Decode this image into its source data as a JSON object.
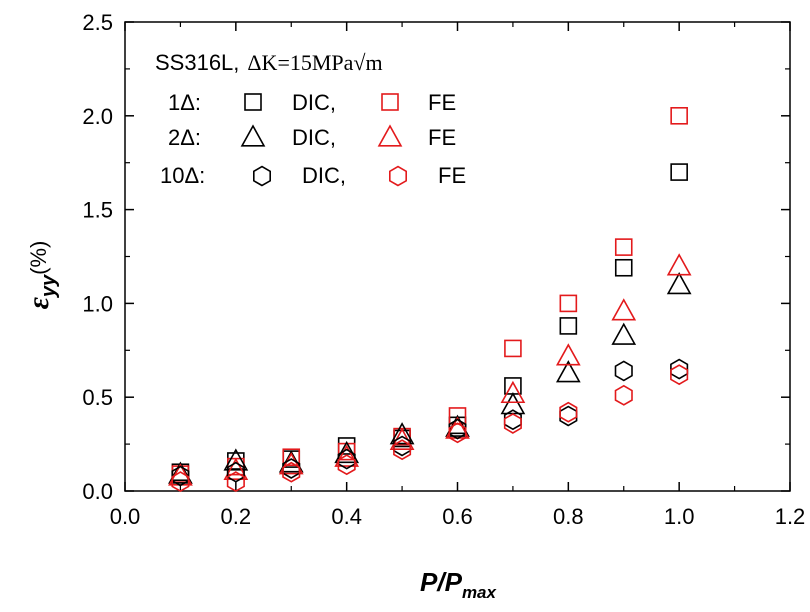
{
  "chart_data": {
    "type": "scatter",
    "title": "",
    "xlabel": "P/P",
    "xlabel_sub": "max",
    "ylabel_symbol": "ε",
    "ylabel_sub": "yy",
    "ylabel_unit": "(%)",
    "xlim": [
      0.0,
      1.2
    ],
    "ylim": [
      0.0,
      2.5
    ],
    "xticks": [
      "0.0",
      "0.2",
      "0.4",
      "0.6",
      "0.8",
      "1.0",
      "1.2"
    ],
    "yticks": [
      "0.0",
      "0.5",
      "1.0",
      "1.5",
      "2.0",
      "2.5"
    ],
    "grid": false,
    "legend_position": "top-left",
    "legend": {
      "title_material": "SS316L,",
      "title_dk": "ΔK=15MPa√m",
      "rows": [
        {
          "label": "1Δ:",
          "dic": "DIC,",
          "fe": "FE",
          "marker": "square"
        },
        {
          "label": "2Δ:",
          "dic": "DIC,",
          "fe": "FE",
          "marker": "triangle"
        },
        {
          "label": "10Δ:",
          "dic": "DIC,",
          "fe": "FE",
          "marker": "hexagon"
        }
      ]
    },
    "colors": {
      "DIC": "#000000",
      "FE": "#e31a1c"
    },
    "series": [
      {
        "name": "1Δ DIC",
        "marker": "square",
        "color": "#000000",
        "x": [
          0.1,
          0.2,
          0.3,
          0.4,
          0.5,
          0.6,
          0.7,
          0.8,
          0.9,
          1.0
        ],
        "y": [
          0.1,
          0.16,
          0.17,
          0.24,
          0.28,
          0.35,
          0.56,
          0.88,
          1.19,
          1.7
        ]
      },
      {
        "name": "1Δ FE",
        "marker": "square",
        "color": "#e31a1c",
        "x": [
          0.1,
          0.2,
          0.3,
          0.4,
          0.5,
          0.6,
          0.7,
          0.8,
          0.9,
          1.0
        ],
        "y": [
          0.09,
          0.13,
          0.18,
          0.21,
          0.29,
          0.4,
          0.76,
          1.0,
          1.3,
          2.0
        ]
      },
      {
        "name": "2Δ DIC",
        "marker": "triangle",
        "color": "#000000",
        "x": [
          0.1,
          0.2,
          0.3,
          0.4,
          0.5,
          0.6,
          0.7,
          0.8,
          0.9,
          1.0
        ],
        "y": [
          0.09,
          0.16,
          0.15,
          0.2,
          0.3,
          0.34,
          0.46,
          0.63,
          0.83,
          1.1
        ]
      },
      {
        "name": "2Δ FE",
        "marker": "triangle",
        "color": "#e31a1c",
        "x": [
          0.1,
          0.2,
          0.3,
          0.4,
          0.5,
          0.6,
          0.7,
          0.8,
          0.9,
          1.0
        ],
        "y": [
          0.08,
          0.11,
          0.14,
          0.18,
          0.27,
          0.33,
          0.52,
          0.72,
          0.96,
          1.2
        ]
      },
      {
        "name": "10Δ DIC",
        "marker": "hexagon",
        "color": "#000000",
        "x": [
          0.1,
          0.2,
          0.3,
          0.4,
          0.5,
          0.6,
          0.7,
          0.8,
          0.9,
          1.0
        ],
        "y": [
          0.08,
          0.1,
          0.12,
          0.17,
          0.24,
          0.33,
          0.38,
          0.4,
          0.64,
          0.65
        ]
      },
      {
        "name": "10Δ FE",
        "marker": "hexagon",
        "color": "#e31a1c",
        "x": [
          0.1,
          0.2,
          0.3,
          0.4,
          0.5,
          0.6,
          0.7,
          0.8,
          0.9,
          1.0
        ],
        "y": [
          0.05,
          0.05,
          0.1,
          0.14,
          0.22,
          0.31,
          0.36,
          0.42,
          0.51,
          0.62
        ]
      }
    ]
  }
}
